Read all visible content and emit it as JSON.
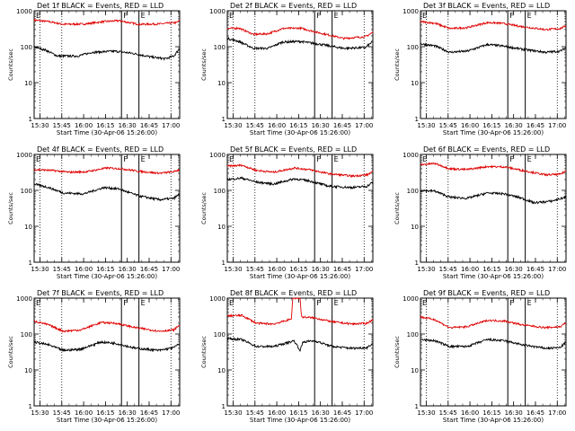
{
  "chart_data": {
    "type": "line",
    "x_tick_labels": [
      "15:30",
      "15:45",
      "16:00",
      "16:15",
      "16:30",
      "16:45",
      "17:00"
    ],
    "y_axis": {
      "label": "Counts/sec",
      "scale": "log",
      "ylim": [
        1,
        1000
      ],
      "tick_labels": [
        "1",
        "10",
        "100",
        "1000"
      ]
    },
    "x_axis": {
      "label": "Start Time (30-Apr-06 15:26:00)",
      "x_minutes_range": [
        0,
        100
      ]
    },
    "colors": {
      "events": "#000000",
      "lld": "#e00000",
      "axis": "#000000",
      "background": "#ffffff"
    },
    "event_markers": {
      "dotted_minutes": [
        4,
        19,
        94
      ],
      "solid_F_minutes": [
        60
      ],
      "solid_E_minutes": [
        72
      ],
      "labels": [
        "F",
        "E"
      ]
    },
    "panels": [
      {
        "title": "Det 1f BLACK = Events, RED = LLD",
        "events": [
          [
            0,
            100
          ],
          [
            8,
            80
          ],
          [
            16,
            55
          ],
          [
            30,
            55
          ],
          [
            40,
            70
          ],
          [
            56,
            75
          ],
          [
            68,
            65
          ],
          [
            80,
            52
          ],
          [
            90,
            46
          ],
          [
            96,
            55
          ],
          [
            100,
            90
          ]
        ],
        "lld": [
          [
            0,
            550
          ],
          [
            10,
            500
          ],
          [
            20,
            420
          ],
          [
            35,
            430
          ],
          [
            48,
            500
          ],
          [
            58,
            530
          ],
          [
            72,
            420
          ],
          [
            86,
            430
          ],
          [
            98,
            470
          ],
          [
            100,
            540
          ]
        ]
      },
      {
        "title": "Det 2f BLACK = Events, RED = LLD",
        "events": [
          [
            0,
            170
          ],
          [
            8,
            140
          ],
          [
            18,
            90
          ],
          [
            28,
            90
          ],
          [
            38,
            135
          ],
          [
            50,
            140
          ],
          [
            62,
            120
          ],
          [
            80,
            90
          ],
          [
            95,
            95
          ],
          [
            100,
            140
          ]
        ],
        "lld": [
          [
            0,
            320
          ],
          [
            8,
            330
          ],
          [
            18,
            220
          ],
          [
            28,
            230
          ],
          [
            38,
            320
          ],
          [
            50,
            330
          ],
          [
            62,
            250
          ],
          [
            80,
            170
          ],
          [
            95,
            190
          ],
          [
            100,
            250
          ]
        ]
      },
      {
        "title": "Det 3f BLACK = Events, RED = LLD",
        "events": [
          [
            0,
            120
          ],
          [
            10,
            105
          ],
          [
            20,
            70
          ],
          [
            32,
            75
          ],
          [
            46,
            115
          ],
          [
            56,
            105
          ],
          [
            70,
            85
          ],
          [
            86,
            70
          ],
          [
            96,
            75
          ],
          [
            100,
            95
          ]
        ],
        "lld": [
          [
            0,
            500
          ],
          [
            10,
            450
          ],
          [
            20,
            320
          ],
          [
            32,
            340
          ],
          [
            46,
            470
          ],
          [
            56,
            450
          ],
          [
            70,
            360
          ],
          [
            86,
            300
          ],
          [
            96,
            320
          ],
          [
            100,
            380
          ]
        ]
      },
      {
        "title": "Det 4f BLACK = Events, RED = LLD",
        "events": [
          [
            0,
            150
          ],
          [
            10,
            120
          ],
          [
            20,
            85
          ],
          [
            34,
            80
          ],
          [
            48,
            120
          ],
          [
            58,
            110
          ],
          [
            72,
            70
          ],
          [
            86,
            55
          ],
          [
            96,
            60
          ],
          [
            100,
            80
          ]
        ],
        "lld": [
          [
            0,
            380
          ],
          [
            12,
            360
          ],
          [
            24,
            320
          ],
          [
            36,
            330
          ],
          [
            50,
            420
          ],
          [
            60,
            400
          ],
          [
            72,
            340
          ],
          [
            86,
            300
          ],
          [
            96,
            330
          ],
          [
            100,
            380
          ]
        ]
      },
      {
        "title": "Det 5f BLACK = Events, RED = LLD",
        "events": [
          [
            0,
            200
          ],
          [
            10,
            220
          ],
          [
            20,
            170
          ],
          [
            32,
            150
          ],
          [
            46,
            210
          ],
          [
            56,
            185
          ],
          [
            70,
            130
          ],
          [
            86,
            120
          ],
          [
            96,
            130
          ],
          [
            100,
            170
          ]
        ],
        "lld": [
          [
            0,
            470
          ],
          [
            10,
            500
          ],
          [
            20,
            360
          ],
          [
            32,
            320
          ],
          [
            46,
            420
          ],
          [
            56,
            380
          ],
          [
            70,
            290
          ],
          [
            86,
            250
          ],
          [
            96,
            270
          ],
          [
            100,
            330
          ]
        ]
      },
      {
        "title": "Det 6f BLACK = Events, RED = LLD",
        "events": [
          [
            0,
            100
          ],
          [
            10,
            95
          ],
          [
            20,
            65
          ],
          [
            32,
            60
          ],
          [
            46,
            85
          ],
          [
            58,
            80
          ],
          [
            70,
            60
          ],
          [
            78,
            45
          ],
          [
            90,
            50
          ],
          [
            100,
            65
          ]
        ],
        "lld": [
          [
            0,
            520
          ],
          [
            10,
            560
          ],
          [
            20,
            400
          ],
          [
            32,
            380
          ],
          [
            46,
            460
          ],
          [
            58,
            450
          ],
          [
            70,
            360
          ],
          [
            86,
            270
          ],
          [
            96,
            280
          ],
          [
            100,
            350
          ]
        ]
      },
      {
        "title": "Det 7f BLACK = Events, RED = LLD",
        "events": [
          [
            0,
            60
          ],
          [
            10,
            50
          ],
          [
            20,
            35
          ],
          [
            32,
            38
          ],
          [
            46,
            60
          ],
          [
            56,
            55
          ],
          [
            70,
            40
          ],
          [
            86,
            35
          ],
          [
            96,
            42
          ],
          [
            100,
            55
          ]
        ],
        "lld": [
          [
            0,
            230
          ],
          [
            10,
            180
          ],
          [
            20,
            120
          ],
          [
            32,
            130
          ],
          [
            46,
            210
          ],
          [
            56,
            200
          ],
          [
            70,
            150
          ],
          [
            86,
            120
          ],
          [
            96,
            130
          ],
          [
            100,
            180
          ]
        ]
      },
      {
        "title": "Det 8f BLACK = Events, RED = LLD",
        "events": [
          [
            0,
            75
          ],
          [
            10,
            70
          ],
          [
            20,
            45
          ],
          [
            32,
            45
          ],
          [
            46,
            65
          ],
          [
            50,
            35
          ],
          [
            52,
            60
          ],
          [
            60,
            65
          ],
          [
            72,
            45
          ],
          [
            86,
            40
          ],
          [
            96,
            42
          ],
          [
            100,
            55
          ]
        ],
        "lld": [
          [
            0,
            320
          ],
          [
            10,
            330
          ],
          [
            20,
            200
          ],
          [
            32,
            190
          ],
          [
            44,
            260
          ],
          [
            45,
            1000
          ],
          [
            50,
            1000
          ],
          [
            51,
            300
          ],
          [
            60,
            280
          ],
          [
            72,
            220
          ],
          [
            86,
            190
          ],
          [
            96,
            200
          ],
          [
            100,
            250
          ]
        ]
      },
      {
        "title": "Det 9f BLACK = Events, RED = LLD",
        "events": [
          [
            0,
            70
          ],
          [
            10,
            65
          ],
          [
            20,
            45
          ],
          [
            32,
            45
          ],
          [
            46,
            70
          ],
          [
            58,
            65
          ],
          [
            70,
            50
          ],
          [
            86,
            40
          ],
          [
            96,
            42
          ],
          [
            100,
            60
          ]
        ],
        "lld": [
          [
            0,
            300
          ],
          [
            10,
            250
          ],
          [
            20,
            150
          ],
          [
            32,
            160
          ],
          [
            46,
            240
          ],
          [
            58,
            230
          ],
          [
            70,
            180
          ],
          [
            86,
            150
          ],
          [
            96,
            160
          ],
          [
            100,
            210
          ]
        ]
      }
    ]
  }
}
